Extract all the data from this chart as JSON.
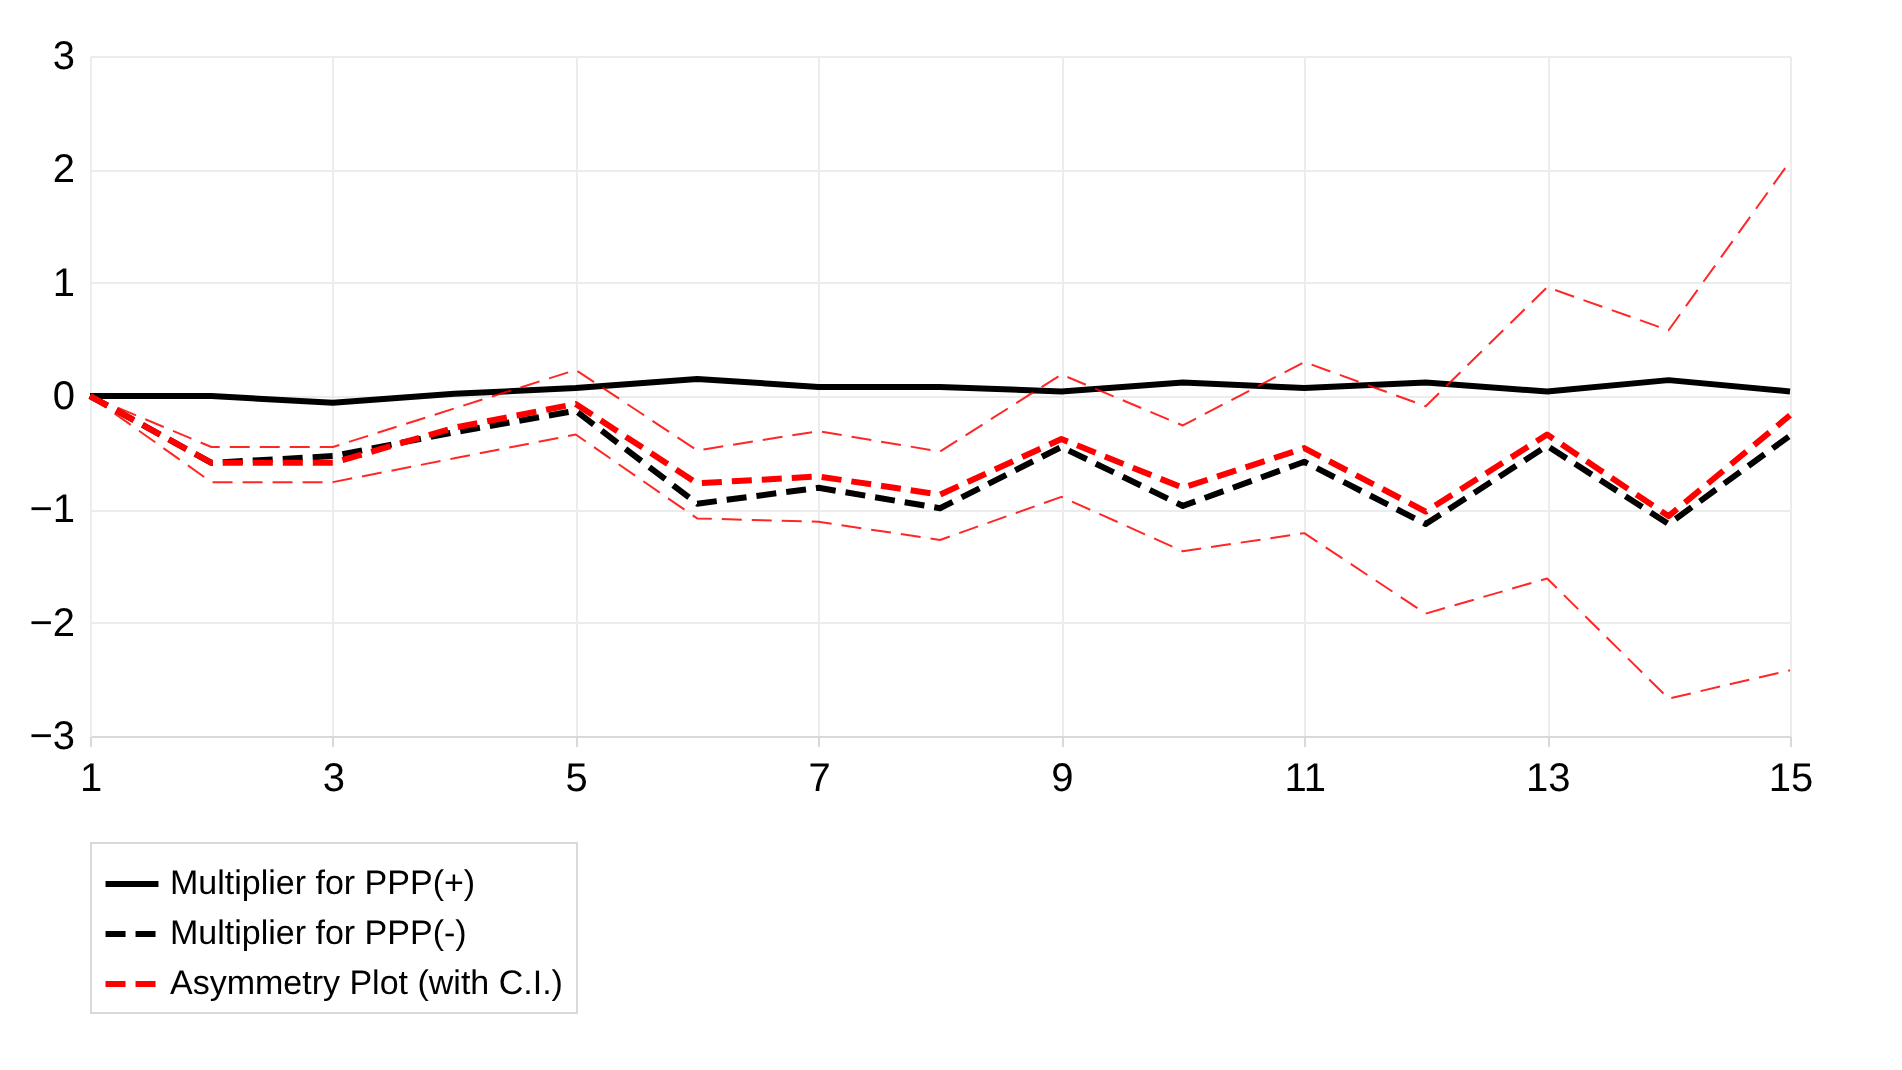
{
  "chart_data": {
    "type": "line",
    "x": [
      1,
      2,
      3,
      4,
      5,
      6,
      7,
      8,
      9,
      10,
      11,
      12,
      13,
      14,
      15
    ],
    "xlim": [
      1,
      15
    ],
    "xticks": [
      1,
      3,
      5,
      7,
      9,
      11,
      13,
      15
    ],
    "ylim": [
      -3,
      3
    ],
    "yticks": [
      -3,
      -2,
      -1,
      0,
      1,
      2,
      3
    ],
    "grid": true,
    "legend": "bottom",
    "marker": "none",
    "series": [
      {
        "name": "Multiplier for PPP(+)",
        "color": "#000000",
        "line_style": "solid",
        "values": [
          0,
          0,
          -0.06,
          0.02,
          0.07,
          0.15,
          0.08,
          0.08,
          0.04,
          0.12,
          0.07,
          0.12,
          0.04,
          0.14,
          0.04
        ]
      },
      {
        "name": "Multiplier for PPP(-)",
        "color": "#000000",
        "line_style": "dashed",
        "values": [
          0,
          -0.59,
          -0.53,
          -0.32,
          -0.13,
          -0.95,
          -0.81,
          -0.99,
          -0.45,
          -0.97,
          -0.58,
          -1.13,
          -0.44,
          -1.13,
          -0.35
        ]
      },
      {
        "color": "#ff0000",
        "line_style": "dashed",
        "values": [
          0,
          -0.45,
          -0.45,
          -0.11,
          0.23,
          -0.48,
          -0.31,
          -0.49,
          0.19,
          -0.26,
          0.3,
          -0.09,
          0.96,
          0.58,
          2.07
        ]
      },
      {
        "color": "#ff0000",
        "line_style": "dashed",
        "values": [
          0,
          -0.76,
          -0.76,
          -0.55,
          -0.34,
          -1.08,
          -1.11,
          -1.27,
          -0.89,
          -1.37,
          -1.21,
          -1.92,
          -1.61,
          -2.67,
          -2.42
        ]
      },
      {
        "name": "Asymmetry Plot (with C.I.)",
        "color": "#ff0000",
        "line_style": "dashed",
        "values": [
          0,
          -0.59,
          -0.59,
          -0.28,
          -0.07,
          -0.77,
          -0.71,
          -0.87,
          -0.38,
          -0.81,
          -0.46,
          -1.02,
          -0.34,
          -1.06,
          -0.17
        ]
      }
    ]
  }
}
